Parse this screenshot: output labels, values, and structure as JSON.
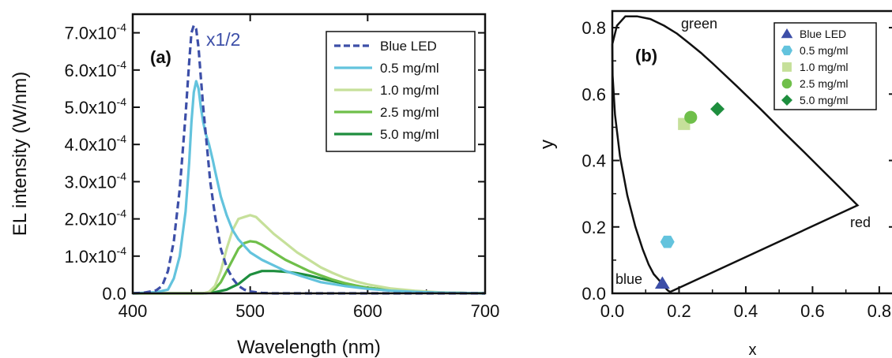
{
  "chart_data": [
    {
      "type": "line",
      "panel_label": "(a)",
      "xlabel": "Wavelength (nm)",
      "ylabel": "EL intensity (W/nm)",
      "xlim": [
        400,
        700
      ],
      "ylim": [
        0,
        0.00075
      ],
      "x_ticks": [
        "400",
        "500",
        "600",
        "700"
      ],
      "y_ticks": [
        {
          "mant": "0.0",
          "exp": ""
        },
        {
          "mant": "1.0x10",
          "exp": "-4"
        },
        {
          "mant": "2.0x10",
          "exp": "-4"
        },
        {
          "mant": "3.0x10",
          "exp": "-4"
        },
        {
          "mant": "4.0x10",
          "exp": "-4"
        },
        {
          "mant": "5.0x10",
          "exp": "-4"
        },
        {
          "mant": "6.0x10",
          "exp": "-4"
        },
        {
          "mant": "7.0x10",
          "exp": "-4"
        }
      ],
      "annotation": "x1/2",
      "legend_position": "top-right",
      "series": [
        {
          "name": "Blue LED",
          "color": "#3d4fa8",
          "dash": true,
          "x": [
            400,
            410,
            420,
            425,
            430,
            435,
            440,
            445,
            448,
            450,
            452,
            454,
            456,
            458,
            460,
            463,
            466,
            470,
            475,
            480,
            485,
            490,
            495,
            500,
            510,
            520,
            700
          ],
          "y": [
            0,
            2e-06,
            8e-06,
            2e-05,
            6e-05,
            0.00014,
            0.00028,
            0.00048,
            0.00062,
            0.0007,
            0.00072,
            0.00071,
            0.00066,
            0.00058,
            0.0005,
            0.0004,
            0.0003,
            0.00021,
            0.00012,
            7e-05,
            4e-05,
            2e-05,
            1e-05,
            5e-06,
            1e-06,
            0,
            0
          ]
        },
        {
          "name": "0.5 mg/ml",
          "color": "#63c3dd",
          "dash": false,
          "x": [
            400,
            420,
            430,
            435,
            440,
            445,
            448,
            450,
            452,
            454,
            456,
            458,
            460,
            462,
            465,
            468,
            470,
            475,
            480,
            485,
            490,
            500,
            510,
            520,
            530,
            540,
            550,
            560,
            580,
            600,
            620,
            640,
            660,
            700
          ],
          "y": [
            0,
            3e-06,
            1e-05,
            4e-05,
            0.0001,
            0.00022,
            0.00035,
            0.00046,
            0.00054,
            0.00057,
            0.00055,
            0.0005,
            0.00046,
            0.00043,
            0.0004,
            0.00036,
            0.00033,
            0.00026,
            0.00021,
            0.00017,
            0.000145,
            0.00011,
            9e-05,
            7.5e-05,
            6e-05,
            5e-05,
            4e-05,
            3e-05,
            2e-05,
            1.2e-05,
            7e-06,
            4e-06,
            2e-06,
            0
          ]
        },
        {
          "name": "1.0 mg/ml",
          "color": "#c6e09a",
          "dash": false,
          "x": [
            400,
            460,
            465,
            470,
            475,
            480,
            485,
            490,
            495,
            500,
            505,
            510,
            515,
            520,
            530,
            540,
            550,
            560,
            570,
            580,
            590,
            600,
            620,
            640,
            660,
            680,
            700
          ],
          "y": [
            0,
            0,
            4e-06,
            2e-05,
            6e-05,
            0.00012,
            0.00017,
            0.0002,
            0.000205,
            0.00021,
            0.000205,
            0.00019,
            0.000175,
            0.00016,
            0.000135,
            0.00011,
            9e-05,
            7e-05,
            5.5e-05,
            4.2e-05,
            3.2e-05,
            2.4e-05,
            1.3e-05,
            7e-06,
            3e-06,
            1e-06,
            0
          ]
        },
        {
          "name": "2.5 mg/ml",
          "color": "#6fbf4a",
          "dash": false,
          "x": [
            400,
            460,
            465,
            470,
            475,
            480,
            485,
            490,
            495,
            500,
            505,
            510,
            515,
            520,
            530,
            540,
            550,
            560,
            570,
            580,
            590,
            600,
            620,
            640,
            660,
            680,
            700
          ],
          "y": [
            0,
            0,
            3e-06,
            1.2e-05,
            3e-05,
            6e-05,
            9e-05,
            0.00012,
            0.000135,
            0.00014,
            0.000138,
            0.00013,
            0.00012,
            0.00011,
            9e-05,
            7.5e-05,
            6e-05,
            4.8e-05,
            3.7e-05,
            2.8e-05,
            2.1e-05,
            1.5e-05,
            8e-06,
            4e-06,
            2e-06,
            1e-06,
            0
          ]
        },
        {
          "name": "5.0 mg/ml",
          "color": "#1e8e3e",
          "dash": false,
          "x": [
            400,
            460,
            470,
            480,
            490,
            500,
            510,
            520,
            530,
            540,
            550,
            560,
            570,
            580,
            590,
            600,
            620,
            640,
            660,
            680,
            700
          ],
          "y": [
            0,
            0,
            3e-06,
            1e-05,
            2.5e-05,
            5e-05,
            6e-05,
            6e-05,
            5.8e-05,
            5.4e-05,
            4.8e-05,
            4e-05,
            3.3e-05,
            2.6e-05,
            2e-05,
            1.5e-05,
            8e-06,
            4e-06,
            2e-06,
            1e-06,
            0
          ]
        }
      ]
    },
    {
      "type": "scatter",
      "panel_label": "(b)",
      "xlabel": "x",
      "ylabel": "y",
      "xlim": [
        0,
        0.85
      ],
      "ylim": [
        0,
        0.85
      ],
      "x_ticks": [
        "0.0",
        "0.2",
        "0.4",
        "0.6",
        "0.8"
      ],
      "y_ticks": [
        "0.0",
        "0.2",
        "0.4",
        "0.6",
        "0.8"
      ],
      "legend_position": "top-right",
      "region_labels": {
        "green": "green",
        "red": "red",
        "blue": "blue"
      },
      "locus": {
        "x": [
          0.175,
          0.172,
          0.166,
          0.155,
          0.14,
          0.124,
          0.109,
          0.091,
          0.069,
          0.045,
          0.023,
          0.008,
          0.001,
          0.0,
          0.014,
          0.039,
          0.074,
          0.114,
          0.155,
          0.194,
          0.229,
          0.266,
          0.301,
          0.373,
          0.444,
          0.512,
          0.575,
          0.627,
          0.666,
          0.692,
          0.735,
          0.175
        ],
        "y": [
          0.005,
          0.005,
          0.009,
          0.021,
          0.04,
          0.058,
          0.087,
          0.133,
          0.201,
          0.295,
          0.413,
          0.538,
          0.655,
          0.75,
          0.806,
          0.834,
          0.834,
          0.826,
          0.806,
          0.782,
          0.754,
          0.724,
          0.692,
          0.624,
          0.555,
          0.487,
          0.425,
          0.373,
          0.334,
          0.308,
          0.265,
          0.005
        ]
      },
      "points": [
        {
          "name": "Blue LED",
          "x": 0.15,
          "y": 0.03,
          "marker": "triangle",
          "color": "#3d4fa8"
        },
        {
          "name": "0.5 mg/ml",
          "x": 0.165,
          "y": 0.155,
          "marker": "hexagon",
          "color": "#63c3dd"
        },
        {
          "name": "1.0 mg/ml",
          "x": 0.215,
          "y": 0.51,
          "marker": "square",
          "color": "#c6e09a"
        },
        {
          "name": "2.5 mg/ml",
          "x": 0.235,
          "y": 0.53,
          "marker": "circle",
          "color": "#6fbf4a"
        },
        {
          "name": "5.0 mg/ml",
          "x": 0.315,
          "y": 0.555,
          "marker": "diamond",
          "color": "#1e8e3e"
        }
      ]
    }
  ]
}
